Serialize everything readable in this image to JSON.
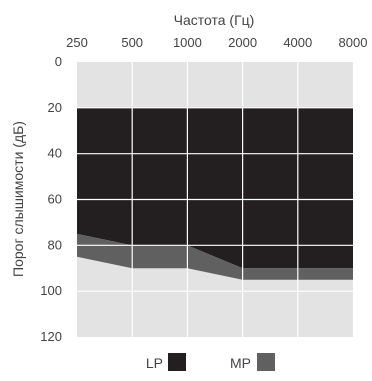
{
  "chart_data": {
    "type": "area",
    "title": "",
    "xlabel": "Частота (Гц)",
    "ylabel": "Порог слышимости (дБ)",
    "x": [
      250,
      500,
      1000,
      2000,
      4000,
      8000
    ],
    "x_tick_labels": [
      "250",
      "500",
      "1000",
      "2000",
      "4000",
      "8000"
    ],
    "x_scale": "log",
    "y_tick_values": [
      0,
      20,
      40,
      60,
      80,
      100,
      120
    ],
    "y_tick_labels": [
      "0",
      "20",
      "40",
      "60",
      "80",
      "100",
      "120"
    ],
    "ylim": [
      0,
      120
    ],
    "y_inverted": true,
    "grid": true,
    "legend_position": "bottom",
    "series": [
      {
        "name": "LP",
        "color": "#231f20",
        "top": [
          20,
          20,
          20,
          20,
          20,
          20
        ],
        "bottom": [
          75,
          80,
          80,
          90,
          90,
          90
        ]
      },
      {
        "name": "MP",
        "color": "#606060",
        "top": [
          75,
          80,
          80,
          90,
          90,
          90
        ],
        "bottom": [
          85,
          90,
          90,
          95,
          95,
          95
        ]
      }
    ],
    "background_color": "#e3e3e3",
    "grid_color": "#ffffff"
  }
}
